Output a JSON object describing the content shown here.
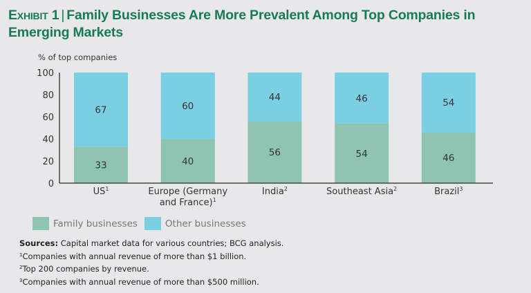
{
  "header": {
    "exhibit": "Exhibit 1",
    "separator": "|",
    "title": "Family Businesses Are More Prevalent Among Top Companies in Emerging Markets"
  },
  "chart_data": {
    "type": "bar",
    "stacked": true,
    "title": "Family Businesses Are More Prevalent Among Top Companies in Emerging Markets",
    "ylabel": "% of top companies",
    "xlabel": "",
    "ylim": [
      0,
      100
    ],
    "yticks": [
      0,
      20,
      40,
      60,
      80,
      100
    ],
    "grid": false,
    "legend_position": "bottom-left",
    "categories": [
      {
        "label": "US",
        "sup": "1"
      },
      {
        "label": "Europe (Germany and France)",
        "line1": "Europe (Germany",
        "line2": "and France)",
        "sup": "1"
      },
      {
        "label": "India",
        "sup": "2"
      },
      {
        "label": "Southeast Asia",
        "sup": "2"
      },
      {
        "label": "Brazil",
        "sup": "3"
      }
    ],
    "series": [
      {
        "name": "Family businesses",
        "color": "#8fc4b2",
        "values": [
          33,
          40,
          56,
          54,
          46
        ]
      },
      {
        "name": "Other businesses",
        "color": "#7acfe3",
        "values": [
          67,
          60,
          44,
          46,
          54
        ]
      }
    ]
  },
  "notes": {
    "sources_label": "Sources:",
    "sources_text": "Capital market data for various countries; BCG analysis.",
    "footnotes": [
      {
        "mark": "1",
        "text": "Companies with annual revenue of more than $1 billion."
      },
      {
        "mark": "2",
        "text": "Top 200 companies by revenue."
      },
      {
        "mark": "3",
        "text": "Companies with annual revenue of more than $500 million."
      }
    ]
  }
}
